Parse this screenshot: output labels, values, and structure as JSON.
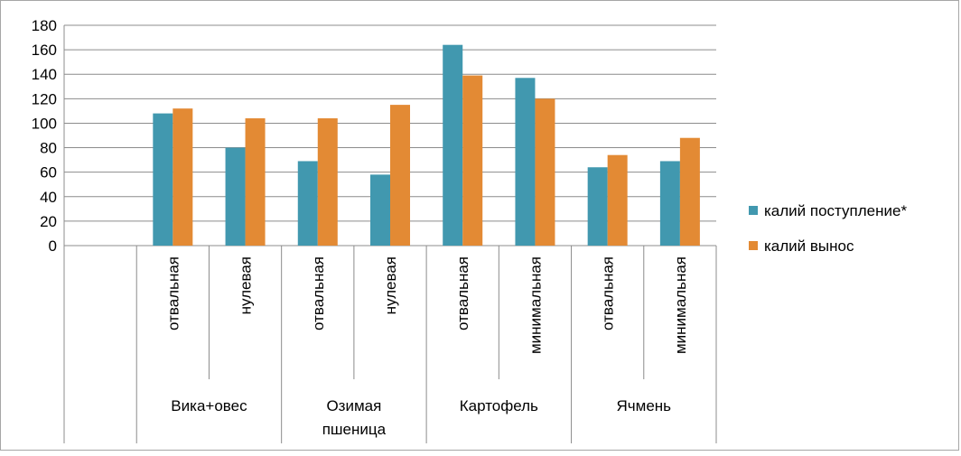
{
  "chart_data": {
    "type": "bar",
    "title": "",
    "xlabel": "",
    "ylabel": "",
    "ylim": [
      0,
      180
    ],
    "yticks": [
      "0",
      "20",
      "40",
      "60",
      "80",
      "100",
      "120",
      "140",
      "160",
      "180"
    ],
    "grid": true,
    "legend_position": "right",
    "categories": [
      {
        "group": "",
        "sub": ""
      },
      {
        "group": "Вика+овес",
        "sub": "отвальная"
      },
      {
        "group": "Вика+овес",
        "sub": "нулевая"
      },
      {
        "group": "Озимая пшеница",
        "sub": "отвальная"
      },
      {
        "group": "Озимая пшеница",
        "sub": "нулевая"
      },
      {
        "group": "Картофель",
        "sub": "отвальная"
      },
      {
        "group": "Картофель",
        "sub": "минимальная"
      },
      {
        "group": "Ячмень",
        "sub": "отвальная"
      },
      {
        "group": "Ячмень",
        "sub": "минимальная"
      }
    ],
    "groups": [
      {
        "label_lines": [
          "Вика+овес"
        ]
      },
      {
        "label_lines": [
          "Озимая",
          "пшеница"
        ]
      },
      {
        "label_lines": [
          "Картофель"
        ]
      },
      {
        "label_lines": [
          "Ячмень"
        ]
      }
    ],
    "series": [
      {
        "name": "калий поступление*",
        "color": "#4198af",
        "values": [
          null,
          108,
          80,
          69,
          58,
          164,
          137,
          64,
          69
        ]
      },
      {
        "name": "калий вынос",
        "color": "#e38a34",
        "values": [
          null,
          112,
          104,
          104,
          115,
          139,
          120,
          74,
          88
        ]
      }
    ]
  }
}
